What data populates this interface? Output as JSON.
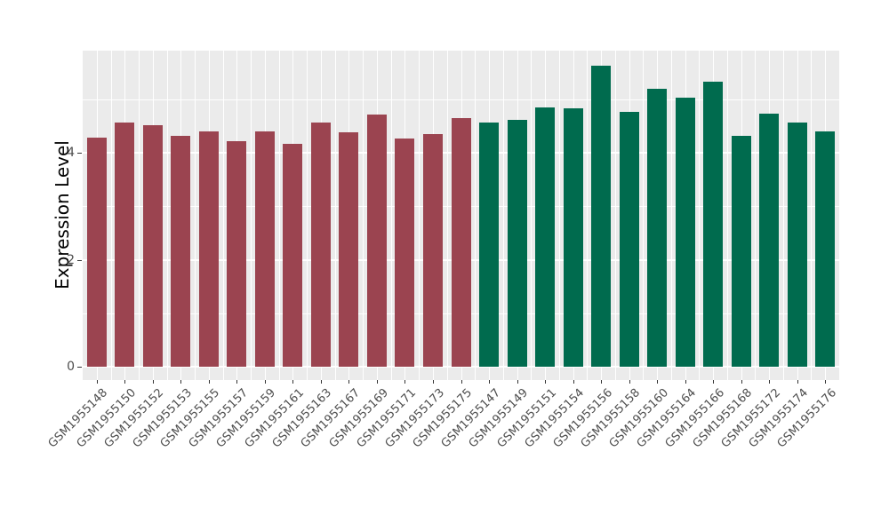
{
  "figure": {
    "background": "#FFFFFF",
    "panel_background": "#EBEBEB",
    "grid_color": "#FFFFFF",
    "axis_text_color": "#4D4D4D",
    "axis_title_color": "#000000",
    "tick_color": "#333333"
  },
  "chart_data": {
    "type": "bar",
    "title": "",
    "xlabel": "",
    "ylabel": "Expression Level",
    "ylim": [
      0,
      5.9
    ],
    "yticks_major": [
      0,
      2,
      4
    ],
    "yticks_minor": [
      1,
      3,
      5
    ],
    "grid": true,
    "legend_position": "none",
    "groups": [
      {
        "id": "group-a",
        "color": "#9B4450"
      },
      {
        "id": "group-b",
        "color": "#006B4E"
      }
    ],
    "bars": [
      {
        "label": "GSM1955148",
        "value": 4.28,
        "group": 0
      },
      {
        "label": "GSM1955150",
        "value": 4.56,
        "group": 0
      },
      {
        "label": "GSM1955152",
        "value": 4.51,
        "group": 0
      },
      {
        "label": "GSM1955153",
        "value": 4.31,
        "group": 0
      },
      {
        "label": "GSM1955155",
        "value": 4.4,
        "group": 0
      },
      {
        "label": "GSM1955157",
        "value": 4.22,
        "group": 0
      },
      {
        "label": "GSM1955159",
        "value": 4.4,
        "group": 0
      },
      {
        "label": "GSM1955161",
        "value": 4.17,
        "group": 0
      },
      {
        "label": "GSM1955163",
        "value": 4.56,
        "group": 0
      },
      {
        "label": "GSM1955167",
        "value": 4.38,
        "group": 0
      },
      {
        "label": "GSM1955169",
        "value": 4.71,
        "group": 0
      },
      {
        "label": "GSM1955171",
        "value": 4.27,
        "group": 0
      },
      {
        "label": "GSM1955173",
        "value": 4.35,
        "group": 0
      },
      {
        "label": "GSM1955175",
        "value": 4.65,
        "group": 0
      },
      {
        "label": "GSM1955147",
        "value": 4.56,
        "group": 1
      },
      {
        "label": "GSM1955149",
        "value": 4.61,
        "group": 1
      },
      {
        "label": "GSM1955151",
        "value": 4.85,
        "group": 1
      },
      {
        "label": "GSM1955154",
        "value": 4.83,
        "group": 1
      },
      {
        "label": "GSM1955156",
        "value": 5.63,
        "group": 1
      },
      {
        "label": "GSM1955158",
        "value": 4.76,
        "group": 1
      },
      {
        "label": "GSM1955160",
        "value": 5.19,
        "group": 1
      },
      {
        "label": "GSM1955164",
        "value": 5.03,
        "group": 1
      },
      {
        "label": "GSM1955166",
        "value": 5.33,
        "group": 1
      },
      {
        "label": "GSM1955168",
        "value": 4.31,
        "group": 1
      },
      {
        "label": "GSM1955172",
        "value": 4.73,
        "group": 1
      },
      {
        "label": "GSM1955174",
        "value": 4.56,
        "group": 1
      },
      {
        "label": "GSM1955176",
        "value": 4.4,
        "group": 1
      }
    ]
  }
}
